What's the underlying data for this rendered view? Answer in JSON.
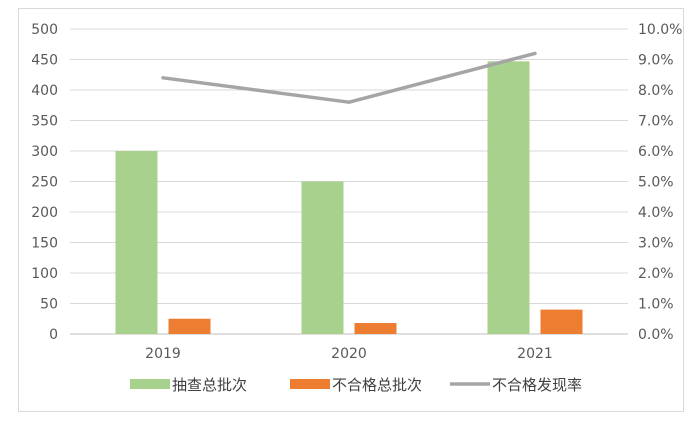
{
  "chart_data": {
    "type": "bar",
    "title": "",
    "categories": [
      "2019",
      "2020",
      "2021"
    ],
    "series": [
      {
        "name": "抽查总批次",
        "type": "bar",
        "axis": "left",
        "color": "#a9d18e",
        "values": [
          300,
          250,
          447
        ]
      },
      {
        "name": "不合格总批次",
        "type": "bar",
        "axis": "left",
        "color": "#ed7d31",
        "values": [
          25,
          18,
          40
        ]
      },
      {
        "name": "不合格发现率",
        "type": "line",
        "axis": "right",
        "color": "#a5a5a5",
        "values": [
          0.084,
          0.076,
          0.092
        ]
      }
    ],
    "yaxis_left": {
      "min": 0,
      "max": 500,
      "step": 50,
      "ticks": [
        "0",
        "50",
        "100",
        "150",
        "200",
        "250",
        "300",
        "350",
        "400",
        "450",
        "500"
      ]
    },
    "yaxis_right": {
      "min": 0,
      "max": 0.1,
      "step": 0.01,
      "ticks": [
        "0.0%",
        "1.0%",
        "2.0%",
        "3.0%",
        "4.0%",
        "5.0%",
        "6.0%",
        "7.0%",
        "8.0%",
        "9.0%",
        "10.0%"
      ]
    },
    "grid": true,
    "legend": "bottom"
  }
}
